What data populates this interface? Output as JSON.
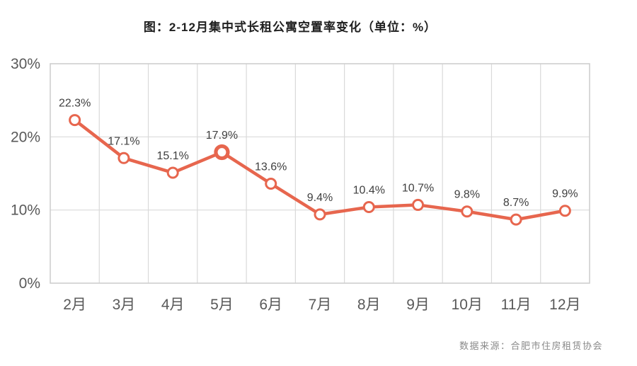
{
  "page": {
    "title": "图：2-12月集中式长租公寓空置率变化（单位：%）",
    "source": "数据来源：合肥市住房租赁协会"
  },
  "chart_data": {
    "type": "line",
    "title": "图：2-12月集中式长租公寓空置率变化（单位：%）",
    "categories": [
      "2月",
      "3月",
      "4月",
      "5月",
      "6月",
      "7月",
      "8月",
      "9月",
      "10月",
      "11月",
      "12月"
    ],
    "values": [
      22.3,
      17.1,
      15.1,
      17.9,
      13.6,
      9.4,
      10.4,
      10.7,
      9.8,
      8.7,
      9.9
    ],
    "data_labels": [
      "22.3%",
      "17.1%",
      "15.1%",
      "17.9%",
      "13.6%",
      "9.4%",
      "10.4%",
      "10.7%",
      "9.8%",
      "8.7%",
      "9.9%"
    ],
    "xlabel": "",
    "ylabel": "",
    "ylim": [
      0,
      30
    ],
    "yticks": [
      0,
      10,
      20,
      30
    ],
    "ytick_labels": [
      "0%",
      "10%",
      "20%",
      "30%"
    ],
    "grid": true,
    "legend": "none",
    "emphasized_index": 3,
    "colors": {
      "line": "#e7664e",
      "marker_fill": "#ffffff",
      "grid": "#d9d9d9",
      "border": "#cfcfcf",
      "data_label": "#3f3f3f",
      "axis_text": "#595959"
    }
  }
}
